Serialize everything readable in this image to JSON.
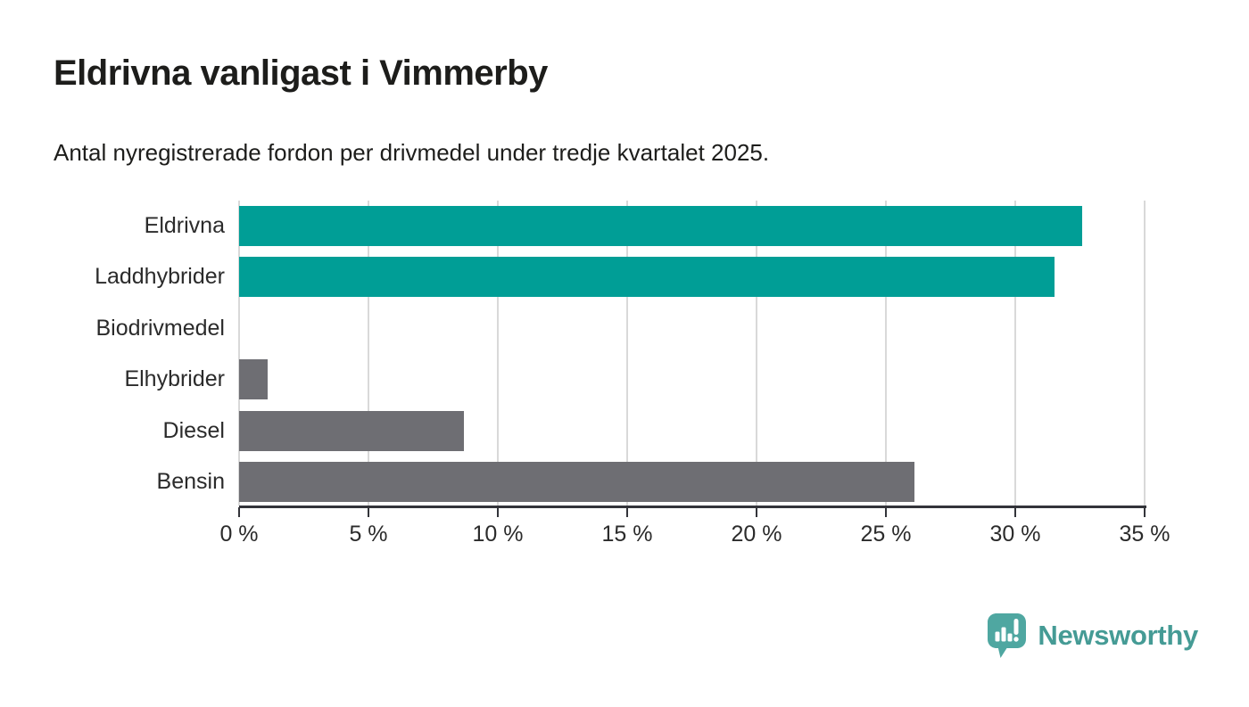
{
  "header": {
    "title": "Eldrivna vanligast i Vimmerby",
    "subtitle": "Antal nyregistrerade fordon per drivmedel under tredje kvartalet 2025."
  },
  "chart_data": {
    "type": "bar",
    "orientation": "horizontal",
    "title": "Eldrivna vanligast i Vimmerby",
    "subtitle": "Antal nyregistrerade fordon per drivmedel under tredje kvartalet 2025.",
    "categories": [
      "Eldrivna",
      "Laddhybrider",
      "Biodrivmedel",
      "Elhybrider",
      "Diesel",
      "Bensin"
    ],
    "values": [
      32.6,
      31.5,
      0,
      1.1,
      8.7,
      26.1
    ],
    "unit": "%",
    "xlim": [
      0,
      35
    ],
    "x_ticks": [
      0,
      5,
      10,
      15,
      20,
      25,
      30,
      35
    ],
    "x_tick_labels": [
      "0 %",
      "5 %",
      "10 %",
      "15 %",
      "20 %",
      "25 %",
      "30 %",
      "35 %"
    ],
    "grid": true,
    "legend": "none",
    "bar_colors": [
      "#009e96",
      "#009e96",
      "#6e6e73",
      "#6e6e73",
      "#6e6e73",
      "#6e6e73"
    ],
    "highlight_color": "#009e96",
    "default_color": "#6e6e73",
    "gridline_color": "#d9d9d9",
    "axis_color": "#33343a"
  },
  "footer": {
    "brand": "Newsworthy",
    "brand_color": "#459b95",
    "logo_icon_color": "#4fa7a1",
    "logo_icon": "newsworthy-speech-bubble-barchart-icon"
  }
}
